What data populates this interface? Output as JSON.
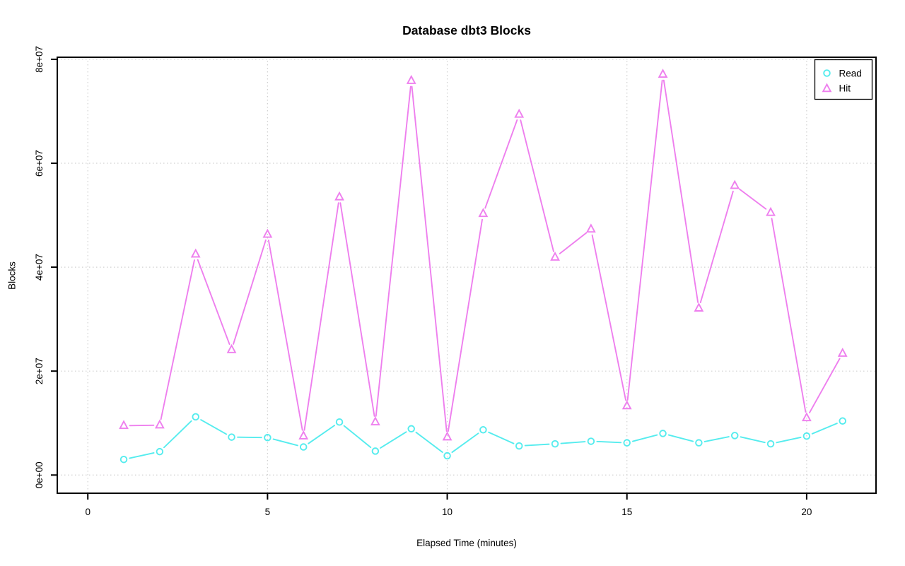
{
  "chart_data": {
    "type": "line",
    "title": "Database dbt3 Blocks",
    "xlabel": "Elapsed Time (minutes)",
    "ylabel": "Blocks",
    "grid": true,
    "grid_color": "#d0d0d0",
    "background": "#ffffff",
    "axis_color": "#000000",
    "legend_position": "top-right",
    "line_style": "points-and-lines",
    "xlim": [
      -0.85,
      21.93
    ],
    "ylim": [
      -3500000.0,
      80400000.0
    ],
    "x": [
      1,
      2,
      3,
      4,
      5,
      6,
      7,
      8,
      9,
      10,
      11,
      12,
      13,
      14,
      15,
      16,
      17,
      18,
      19,
      20,
      21
    ],
    "x_ticks": [
      {
        "value": 0,
        "label": "0"
      },
      {
        "value": 5,
        "label": "5"
      },
      {
        "value": 10,
        "label": "10"
      },
      {
        "value": 15,
        "label": "15"
      },
      {
        "value": 20,
        "label": "20"
      }
    ],
    "y_ticks": [
      {
        "value": 0,
        "label": "0e+00"
      },
      {
        "value": 20000000.0,
        "label": "2e+07"
      },
      {
        "value": 40000000.0,
        "label": "4e+07"
      },
      {
        "value": 60000000.0,
        "label": "6e+07"
      },
      {
        "value": 80000000.0,
        "label": "8e+07"
      }
    ],
    "series": [
      {
        "name": "Read",
        "marker": "circle",
        "color": "#55ecee",
        "values": [
          3000000.0,
          4500000.0,
          11200000.0,
          7300000.0,
          7200000.0,
          5400000.0,
          10200000.0,
          4600000.0,
          8900000.0,
          3700000.0,
          8700000.0,
          5600000.0,
          6000000.0,
          6500000.0,
          6200000.0,
          8000000.0,
          6200000.0,
          7600000.0,
          6000000.0,
          7500000.0,
          10400000.0
        ]
      },
      {
        "name": "Hit",
        "marker": "triangle",
        "color": "#ee7fee",
        "values": [
          9500000.0,
          9600000.0,
          42500000.0,
          24100000.0,
          46300000.0,
          7500000.0,
          53500000.0,
          10200000.0,
          75900000.0,
          7300000.0,
          50300000.0,
          69400000.0,
          41900000.0,
          47300000.0,
          13300000.0,
          77100000.0,
          32100000.0,
          55700000.0,
          50500000.0,
          11000000.0,
          23400000.0
        ]
      }
    ]
  },
  "legend": {
    "items": [
      {
        "label": "Read",
        "marker": "circle-icon"
      },
      {
        "label": "Hit",
        "marker": "triangle-icon"
      }
    ]
  }
}
